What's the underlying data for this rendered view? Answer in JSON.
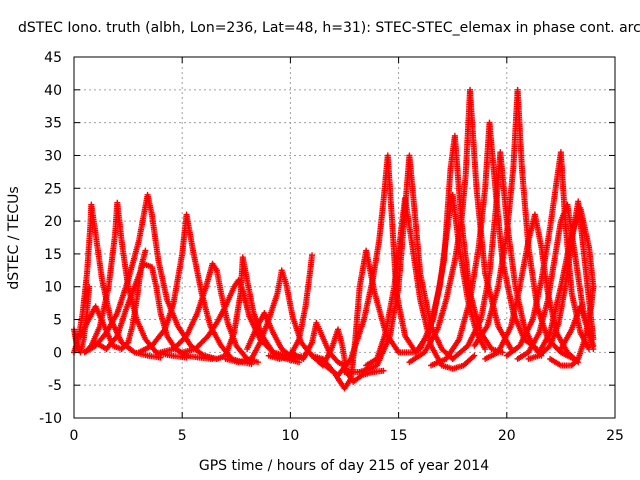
{
  "chart_data": {
    "type": "scatter",
    "title": "dSTEC Iono. truth (albh, Lon=236, Lat=48, h=31): STEC-STEC_elemax in phase cont. arcs",
    "xlabel": "GPS time / hours of day 215 of year 2014",
    "ylabel": "dSTEC  / TECUs",
    "xlim": [
      0,
      25
    ],
    "ylim": [
      -10,
      45
    ],
    "xticks": [
      "0",
      "5",
      "10",
      "15",
      "20",
      "25"
    ],
    "yticks": [
      "-10",
      "-5",
      "0",
      "5",
      "10",
      "15",
      "20",
      "25",
      "30",
      "35",
      "40",
      "45"
    ],
    "xtick_values": [
      0,
      5,
      10,
      15,
      20,
      25
    ],
    "ytick_values": [
      -10,
      -5,
      0,
      5,
      10,
      15,
      20,
      25,
      30,
      35,
      40,
      45
    ],
    "grid": true,
    "marker": "+",
    "color": "#ff0000",
    "series": [
      {
        "x": [
          0.0,
          0.15,
          0.3,
          0.45,
          0.6,
          0.7
        ],
        "y": [
          3.5,
          0.8,
          0.0,
          2.0,
          6.0,
          10.0
        ]
      },
      {
        "x": [
          0.0,
          0.2,
          0.4,
          0.6,
          0.75,
          0.8,
          1.0,
          1.3,
          1.7,
          2.2,
          2.8,
          3.4,
          4.0
        ],
        "y": [
          0.0,
          2.0,
          6.0,
          12.0,
          19.0,
          22.5,
          18.0,
          11.0,
          5.0,
          1.5,
          0.0,
          -0.5,
          -0.8
        ]
      },
      {
        "x": [
          0.5,
          0.8,
          1.2,
          1.6,
          1.9,
          2.0,
          2.2,
          2.5,
          2.9,
          3.3,
          3.8,
          4.5,
          5.2
        ],
        "y": [
          0.0,
          1.0,
          4.0,
          10.0,
          18.0,
          22.8,
          17.0,
          10.0,
          5.0,
          2.0,
          0.0,
          -0.5,
          -0.8
        ]
      },
      {
        "x": [
          0.3,
          0.6,
          1.0,
          1.4,
          1.8,
          2.2,
          2.5,
          2.7,
          2.9,
          3.1,
          3.3
        ],
        "y": [
          2.5,
          4.5,
          7.0,
          4.0,
          1.0,
          0.5,
          1.5,
          4.0,
          8.0,
          13.0,
          15.5
        ]
      },
      {
        "x": [
          0.5,
          1.0,
          1.5,
          2.0,
          2.5,
          3.0,
          3.4,
          3.6,
          3.9,
          4.3,
          4.8,
          5.4,
          6.0,
          6.6
        ],
        "y": [
          0.0,
          1.0,
          3.0,
          6.0,
          11.0,
          17.0,
          24.0,
          21.0,
          14.0,
          8.0,
          4.0,
          1.0,
          -0.5,
          -1.0
        ]
      },
      {
        "x": [
          1.0,
          1.5,
          2.0,
          2.4,
          2.8,
          3.2,
          3.6,
          3.8,
          4.0,
          4.3,
          4.7,
          5.2,
          5.8,
          6.4
        ],
        "y": [
          1.5,
          0.5,
          2.5,
          6.5,
          10.0,
          13.5,
          13.0,
          10.0,
          6.0,
          2.5,
          0.5,
          -0.5,
          -0.8,
          -1.0
        ]
      },
      {
        "x": [
          3.0,
          3.6,
          4.2,
          4.6,
          5.0,
          5.2,
          5.5,
          5.9,
          6.3,
          6.8,
          7.3,
          7.8,
          8.2
        ],
        "y": [
          0.0,
          1.0,
          3.5,
          7.5,
          15.0,
          21.0,
          15.5,
          9.0,
          4.0,
          1.0,
          -1.0,
          -1.5,
          -1.8
        ]
      },
      {
        "x": [
          4.0,
          4.6,
          5.2,
          5.7,
          6.1,
          6.4,
          6.6,
          6.8,
          7.1,
          7.5,
          8.0,
          8.5
        ],
        "y": [
          0.0,
          0.5,
          2.5,
          6.0,
          10.0,
          13.5,
          12.5,
          9.0,
          4.5,
          1.0,
          -1.0,
          -1.5
        ]
      },
      {
        "x": [
          5.0,
          5.6,
          6.2,
          6.6,
          7.0,
          7.4,
          7.6,
          7.8,
          8.1,
          8.6,
          9.2,
          9.8,
          10.4
        ],
        "y": [
          0.0,
          0.5,
          2.5,
          4.5,
          7.0,
          10.0,
          11.0,
          9.5,
          5.5,
          2.0,
          0.0,
          -0.5,
          -0.8
        ]
      },
      {
        "x": [
          6.0,
          6.6,
          7.0,
          7.4,
          7.7,
          7.8,
          8.0,
          8.3,
          8.7,
          9.2,
          9.8,
          10.4
        ],
        "y": [
          -0.5,
          -1.0,
          -0.5,
          3.0,
          9.0,
          14.5,
          11.0,
          6.0,
          2.5,
          0.0,
          -1.0,
          -1.5
        ]
      },
      {
        "x": [
          7.0,
          7.6,
          8.2,
          8.6,
          9.0,
          9.4,
          9.6,
          9.8,
          10.1,
          10.5,
          11.0,
          11.5
        ],
        "y": [
          -1.0,
          -1.5,
          -1.0,
          1.5,
          5.0,
          9.0,
          12.5,
          10.5,
          5.5,
          1.5,
          -0.5,
          -1.0
        ]
      },
      {
        "x": [
          8.0,
          8.4,
          8.8,
          9.2,
          9.6,
          10.0,
          10.3,
          10.6
        ],
        "y": [
          0.5,
          3.5,
          6.0,
          3.0,
          0.5,
          -0.5,
          -0.8,
          -0.5
        ]
      },
      {
        "x": [
          9.0,
          9.5,
          10.0,
          10.4,
          10.7,
          10.9,
          11.0
        ],
        "y": [
          -0.5,
          -1.0,
          -0.5,
          2.0,
          7.0,
          12.0,
          14.8
        ]
      },
      {
        "x": [
          10.0,
          10.6,
          11.0,
          11.2,
          11.4,
          11.8,
          12.2,
          12.5
        ],
        "y": [
          0.0,
          -1.0,
          1.5,
          4.5,
          3.0,
          0.0,
          -1.5,
          -2.0
        ]
      },
      {
        "x": [
          11.0,
          11.5,
          11.9,
          12.2,
          12.4,
          12.6,
          12.9,
          13.3,
          13.8,
          14.3
        ],
        "y": [
          -0.5,
          -2.0,
          0.5,
          3.5,
          1.0,
          -3.0,
          -4.5,
          -3.5,
          -3.0,
          -2.8
        ]
      },
      {
        "x": [
          11.5,
          12.0,
          12.5,
          12.8,
          13.0,
          13.2,
          13.5,
          13.9,
          14.4,
          15.0
        ],
        "y": [
          -1.0,
          -3.0,
          -5.5,
          -4.0,
          2.0,
          10.0,
          15.5,
          9.0,
          3.0,
          0.0
        ]
      },
      {
        "x": [
          11.0,
          11.6,
          12.2,
          12.8,
          13.4,
          13.8,
          14.1,
          14.3,
          14.5,
          14.7,
          14.9,
          15.3,
          15.8
        ],
        "y": [
          -0.5,
          -2.0,
          -3.5,
          -1.0,
          5.0,
          11.0,
          17.0,
          23.0,
          30.0,
          20.0,
          9.0,
          2.5,
          0.0
        ]
      },
      {
        "x": [
          12.5,
          13.2,
          14.0,
          14.6,
          15.0,
          15.3,
          15.5,
          15.7,
          16.0,
          16.5,
          17.0,
          17.5
        ],
        "y": [
          -3.0,
          -3.0,
          -2.0,
          2.5,
          10.0,
          22.0,
          30.0,
          23.0,
          12.0,
          4.0,
          0.5,
          -1.0
        ]
      },
      {
        "x": [
          13.5,
          14.0,
          14.4,
          14.8,
          15.1,
          15.3,
          15.6,
          16.0,
          16.5,
          17.0,
          17.5,
          18.0,
          18.5
        ],
        "y": [
          -2.0,
          -1.0,
          3.0,
          10.0,
          18.0,
          23.5,
          17.0,
          8.0,
          1.0,
          -2.0,
          -2.5,
          -2.0,
          -0.5
        ]
      },
      {
        "x": [
          15.0,
          15.8,
          16.4,
          16.9,
          17.3,
          17.5,
          17.8,
          18.2,
          18.6,
          19.0
        ],
        "y": [
          0.0,
          0.0,
          3.0,
          10.0,
          20.0,
          24.0,
          16.0,
          8.0,
          3.0,
          0.5
        ]
      },
      {
        "x": [
          15.5,
          16.2,
          16.8,
          17.2,
          17.6,
          17.9,
          18.1,
          18.3,
          18.6,
          19.0,
          19.6,
          20.2
        ],
        "y": [
          -1.5,
          0.0,
          3.5,
          8.0,
          14.0,
          20.0,
          27.0,
          40.0,
          25.0,
          12.0,
          4.0,
          0.5
        ]
      },
      {
        "x": [
          16.0,
          16.6,
          17.1,
          17.4,
          17.6,
          17.9,
          18.3,
          18.8,
          19.3,
          19.8
        ],
        "y": [
          0.5,
          5.0,
          14.0,
          28.0,
          33.0,
          20.0,
          9.0,
          3.0,
          0.5,
          0.0
        ]
      },
      {
        "x": [
          16.5,
          17.2,
          17.8,
          18.3,
          18.7,
          19.0,
          19.2,
          19.5,
          19.8,
          20.3,
          20.8,
          21.4
        ],
        "y": [
          -2.0,
          -1.0,
          2.0,
          8.0,
          16.0,
          25.0,
          35.0,
          24.0,
          14.0,
          6.0,
          2.0,
          0.5
        ]
      },
      {
        "x": [
          17.5,
          18.2,
          18.8,
          19.2,
          19.5,
          19.7,
          20.0,
          20.4,
          20.8,
          21.2,
          21.6
        ],
        "y": [
          -1.0,
          1.0,
          5.0,
          12.0,
          22.0,
          30.5,
          20.0,
          10.0,
          4.0,
          1.0,
          -0.5
        ]
      },
      {
        "x": [
          18.5,
          19.1,
          19.6,
          20.0,
          20.3,
          20.5,
          20.7,
          21.0,
          21.4,
          21.9,
          22.5,
          23.1
        ],
        "y": [
          1.0,
          4.0,
          10.0,
          18.0,
          28.0,
          40.0,
          28.0,
          16.0,
          7.0,
          2.0,
          0.0,
          -1.0
        ]
      },
      {
        "x": [
          19.0,
          19.6,
          20.2,
          20.6,
          21.0,
          21.3,
          21.6,
          21.9,
          22.3,
          22.8,
          23.3
        ],
        "y": [
          -1.0,
          0.0,
          4.0,
          10.0,
          17.0,
          21.0,
          16.0,
          9.0,
          3.0,
          0.0,
          -1.5
        ]
      },
      {
        "x": [
          20.0,
          20.6,
          21.2,
          21.6,
          22.0,
          22.3,
          22.5,
          22.7,
          23.0,
          23.4,
          23.8
        ],
        "y": [
          -0.5,
          1.0,
          5.0,
          11.0,
          19.0,
          26.0,
          30.5,
          20.0,
          9.0,
          3.0,
          0.5
        ]
      },
      {
        "x": [
          20.5,
          21.0,
          21.5,
          21.9,
          22.2,
          22.5,
          22.8,
          23.1,
          23.5,
          23.9,
          24.0
        ],
        "y": [
          -1.0,
          0.0,
          3.0,
          8.0,
          14.0,
          20.0,
          22.5,
          16.0,
          7.0,
          1.5,
          0.5
        ]
      },
      {
        "x": [
          21.0,
          21.5,
          22.0,
          22.4,
          22.7,
          23.0,
          23.3,
          23.6,
          23.9,
          24.0
        ],
        "y": [
          -1.0,
          -0.5,
          1.0,
          4.5,
          10.0,
          17.0,
          23.0,
          14.0,
          5.0,
          2.0
        ]
      },
      {
        "x": [
          21.5,
          22.0,
          22.5,
          23.0,
          23.4,
          23.8,
          24.0
        ],
        "y": [
          0.0,
          3.0,
          10.0,
          18.0,
          22.0,
          16.0,
          10.0
        ]
      },
      {
        "x": [
          22.0,
          22.5,
          23.0,
          23.3,
          23.6,
          23.9,
          24.0
        ],
        "y": [
          -1.0,
          -2.0,
          -2.0,
          -1.0,
          2.0,
          7.0,
          10.0
        ]
      },
      {
        "x": [
          22.5,
          23.0,
          23.4,
          23.7,
          24.0
        ],
        "y": [
          0.5,
          3.5,
          7.0,
          4.0,
          1.0
        ]
      }
    ]
  }
}
